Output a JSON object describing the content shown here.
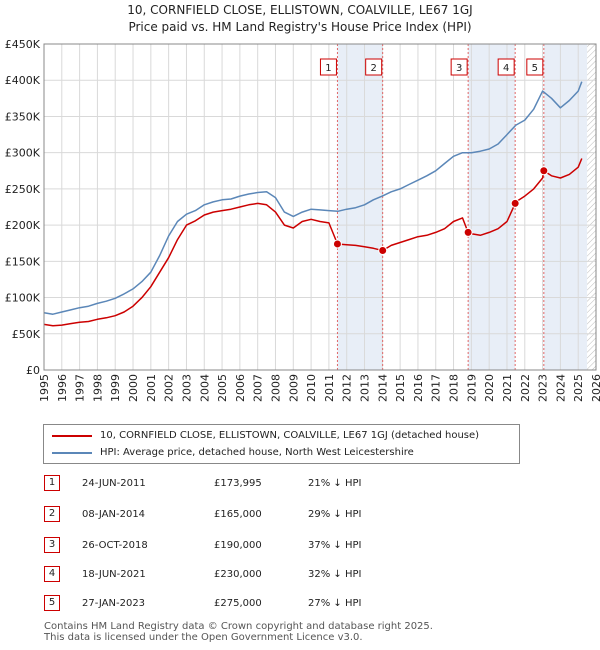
{
  "title": {
    "line1": "10, CORNFIELD CLOSE, ELLISTOWN, COALVILLE, LE67 1GJ",
    "line2": "Price paid vs. HM Land Registry's House Price Index (HPI)"
  },
  "colors": {
    "property": "#cc0000",
    "hpi": "#5b87b8",
    "shade": "#e8eef7",
    "grid": "#d9d9d9",
    "vline": "#e06666"
  },
  "legend": {
    "property_label": "10, CORNFIELD CLOSE, ELLISTOWN, COALVILLE, LE67 1GJ (detached house)",
    "hpi_label": "HPI: Average price, detached house, North West Leicestershire"
  },
  "sales": [
    {
      "num": "1",
      "date": "24-JUN-2011",
      "price": "£173,995",
      "hpi": "21% ↓ HPI"
    },
    {
      "num": "2",
      "date": "08-JAN-2014",
      "price": "£165,000",
      "hpi": "29% ↓ HPI"
    },
    {
      "num": "3",
      "date": "26-OCT-2018",
      "price": "£190,000",
      "hpi": "37% ↓ HPI"
    },
    {
      "num": "4",
      "date": "18-JUN-2021",
      "price": "£230,000",
      "hpi": "32% ↓ HPI"
    },
    {
      "num": "5",
      "date": "27-JAN-2023",
      "price": "£275,000",
      "hpi": "27% ↓ HPI"
    }
  ],
  "footer": {
    "line1": "Contains HM Land Registry data © Crown copyright and database right 2025.",
    "line2": "This data is licensed under the Open Government Licence v3.0."
  },
  "chart_data": {
    "type": "line",
    "title": "Price paid vs. HM Land Registry's House Price Index (HPI)",
    "xlabel": "",
    "ylabel": "",
    "xlim": [
      1995,
      2026
    ],
    "ylim": [
      0,
      450000
    ],
    "x_ticks": [
      1995,
      1996,
      1997,
      1998,
      1999,
      2000,
      2001,
      2002,
      2003,
      2004,
      2005,
      2006,
      2007,
      2008,
      2009,
      2010,
      2011,
      2012,
      2013,
      2014,
      2015,
      2016,
      2017,
      2018,
      2019,
      2020,
      2021,
      2022,
      2023,
      2024,
      2025,
      2026
    ],
    "y_ticks": [
      0,
      50000,
      100000,
      150000,
      200000,
      250000,
      300000,
      350000,
      400000,
      450000
    ],
    "y_tick_labels": [
      "£0",
      "£50K",
      "£100K",
      "£150K",
      "£200K",
      "£250K",
      "£300K",
      "£350K",
      "£400K",
      "£450K"
    ],
    "grid": true,
    "shaded_ranges": [
      [
        2011.48,
        2014.02
      ],
      [
        2018.82,
        2021.46
      ],
      [
        2023.07,
        2025.5
      ]
    ],
    "hatched_range": [
      2025.5,
      2026
    ],
    "markers": [
      {
        "label": "1",
        "x": 2011.48,
        "y": 173995
      },
      {
        "label": "2",
        "x": 2014.02,
        "y": 165000
      },
      {
        "label": "3",
        "x": 2018.82,
        "y": 190000
      },
      {
        "label": "4",
        "x": 2021.46,
        "y": 230000
      },
      {
        "label": "5",
        "x": 2023.07,
        "y": 275000
      }
    ],
    "series": [
      {
        "name": "10, CORNFIELD CLOSE, ELLISTOWN, COALVILLE, LE67 1GJ (detached house)",
        "color": "#cc0000",
        "x": [
          1995,
          1995.5,
          1996,
          1996.5,
          1997,
          1997.5,
          1998,
          1998.5,
          1999,
          1999.5,
          2000,
          2000.5,
          2001,
          2001.5,
          2002,
          2002.5,
          2003,
          2003.5,
          2004,
          2004.5,
          2005,
          2005.5,
          2006,
          2006.5,
          2007,
          2007.5,
          2008,
          2008.5,
          2009,
          2009.5,
          2010,
          2010.5,
          2011,
          2011.48,
          2012,
          2012.5,
          2013,
          2013.5,
          2014.02,
          2014.5,
          2015,
          2015.5,
          2016,
          2016.5,
          2017,
          2017.5,
          2018,
          2018.5,
          2018.82,
          2019,
          2019.5,
          2020,
          2020.5,
          2021,
          2021.46,
          2021.5,
          2022,
          2022.5,
          2023,
          2023.07,
          2023.5,
          2024,
          2024.5,
          2025,
          2025.2
        ],
        "y": [
          63000,
          61000,
          62000,
          64000,
          66000,
          67000,
          70000,
          72000,
          75000,
          80000,
          88000,
          100000,
          115000,
          135000,
          155000,
          180000,
          200000,
          206000,
          214000,
          218000,
          220000,
          222000,
          225000,
          228000,
          230000,
          228000,
          218000,
          200000,
          196000,
          205000,
          208000,
          205000,
          203000,
          173995,
          173000,
          172000,
          170000,
          168000,
          165000,
          172000,
          176000,
          180000,
          184000,
          186000,
          190000,
          195000,
          205000,
          210000,
          190000,
          188000,
          186000,
          190000,
          195000,
          205000,
          230000,
          232000,
          240000,
          250000,
          265000,
          275000,
          268000,
          265000,
          270000,
          280000,
          292000
        ]
      },
      {
        "name": "HPI: Average price, detached house, North West Leicestershire",
        "color": "#5b87b8",
        "x": [
          1995,
          1995.5,
          1996,
          1996.5,
          1997,
          1997.5,
          1998,
          1998.5,
          1999,
          1999.5,
          2000,
          2000.5,
          2001,
          2001.5,
          2002,
          2002.5,
          2003,
          2003.5,
          2004,
          2004.5,
          2005,
          2005.5,
          2006,
          2006.5,
          2007,
          2007.5,
          2008,
          2008.5,
          2009,
          2009.5,
          2010,
          2010.5,
          2011,
          2011.5,
          2012,
          2012.5,
          2013,
          2013.5,
          2014,
          2014.5,
          2015,
          2015.5,
          2016,
          2016.5,
          2017,
          2017.5,
          2018,
          2018.5,
          2019,
          2019.5,
          2020,
          2020.5,
          2021,
          2021.5,
          2022,
          2022.5,
          2023,
          2023.5,
          2024,
          2024.5,
          2025,
          2025.2
        ],
        "y": [
          79000,
          77000,
          80000,
          83000,
          86000,
          88000,
          92000,
          95000,
          99000,
          105000,
          112000,
          122000,
          135000,
          158000,
          185000,
          205000,
          215000,
          220000,
          228000,
          232000,
          235000,
          236000,
          240000,
          243000,
          245000,
          246000,
          238000,
          218000,
          212000,
          218000,
          222000,
          221000,
          220000,
          219000,
          222000,
          224000,
          228000,
          235000,
          240000,
          246000,
          250000,
          256000,
          262000,
          268000,
          275000,
          285000,
          295000,
          300000,
          300000,
          302000,
          305000,
          312000,
          325000,
          338000,
          345000,
          360000,
          385000,
          375000,
          362000,
          372000,
          385000,
          398000
        ]
      }
    ]
  }
}
